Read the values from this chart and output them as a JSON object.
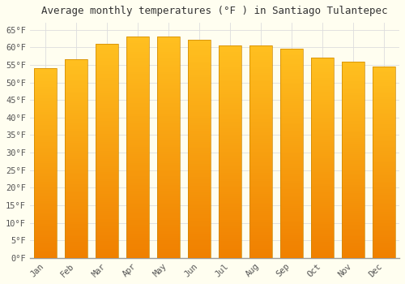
{
  "title": "Average monthly temperatures (°F ) in Santiago Tulantepec",
  "months": [
    "Jan",
    "Feb",
    "Mar",
    "Apr",
    "May",
    "Jun",
    "Jul",
    "Aug",
    "Sep",
    "Oct",
    "Nov",
    "Dec"
  ],
  "values": [
    54.1,
    56.5,
    61.0,
    63.1,
    63.1,
    62.2,
    60.6,
    60.6,
    59.5,
    57.0,
    55.9,
    54.5
  ],
  "bar_color_top": "#FFB700",
  "bar_color_bottom": "#F08000",
  "background_color": "#FFFEF0",
  "grid_color": "#DDDDDD",
  "axis_color": "#999999",
  "text_color": "#555555",
  "ylim": [
    0,
    67
  ],
  "yticks": [
    0,
    5,
    10,
    15,
    20,
    25,
    30,
    35,
    40,
    45,
    50,
    55,
    60,
    65
  ],
  "title_fontsize": 9,
  "tick_fontsize": 7.5,
  "font_family": "monospace"
}
